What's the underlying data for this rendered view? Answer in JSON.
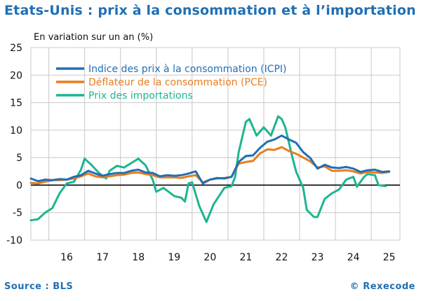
{
  "header": {
    "title": "Etats-Unis : prix à la consommation et à l’importation",
    "subtitle": "En variation sur un an (%)"
  },
  "footer": {
    "source": "Source : BLS",
    "copyright": "© Rexecode"
  },
  "colors": {
    "title": "#1f6fb5",
    "cpi": "#1f6fb5",
    "pce": "#e87d1e",
    "imports": "#1db591",
    "zero_line": "#000000",
    "grid": "#c8c8c8"
  },
  "chart_data": {
    "type": "line",
    "title": "Etats-Unis : prix à la consommation et à l’importation",
    "ylabel": "En variation sur un an (%)",
    "xlabel": "",
    "ylim": [
      -10,
      25
    ],
    "yticks": [
      25,
      20,
      15,
      10,
      5,
      0,
      -5,
      -10
    ],
    "xlim": [
      2015.5,
      2025.8
    ],
    "xticks": [
      {
        "label": "16",
        "x": 2016.5
      },
      {
        "label": "17",
        "x": 2017.5
      },
      {
        "label": "18",
        "x": 2018.5
      },
      {
        "label": "19",
        "x": 2019.5
      },
      {
        "label": "20",
        "x": 2020.5
      },
      {
        "label": "21",
        "x": 2021.5
      },
      {
        "label": "22",
        "x": 2022.5
      },
      {
        "label": "23",
        "x": 2023.5
      },
      {
        "label": "24",
        "x": 2024.5
      },
      {
        "label": "25",
        "x": 2025.5
      }
    ],
    "grid": true,
    "legend_position": "top-left",
    "series": [
      {
        "name": "Indice des prix à la consommation (ICPI)",
        "color_key": "cpi",
        "points": [
          [
            2015.5,
            1.2
          ],
          [
            2015.7,
            0.7
          ],
          [
            2015.9,
            1.0
          ],
          [
            2016.1,
            0.9
          ],
          [
            2016.3,
            1.1
          ],
          [
            2016.5,
            1.0
          ],
          [
            2016.7,
            1.5
          ],
          [
            2016.9,
            1.8
          ],
          [
            2017.1,
            2.6
          ],
          [
            2017.3,
            2.1
          ],
          [
            2017.5,
            1.7
          ],
          [
            2017.7,
            2.0
          ],
          [
            2017.9,
            2.2
          ],
          [
            2018.1,
            2.2
          ],
          [
            2018.3,
            2.6
          ],
          [
            2018.5,
            2.8
          ],
          [
            2018.7,
            2.3
          ],
          [
            2018.9,
            2.2
          ],
          [
            2019.1,
            1.6
          ],
          [
            2019.3,
            1.8
          ],
          [
            2019.5,
            1.7
          ],
          [
            2019.7,
            1.8
          ],
          [
            2019.9,
            2.1
          ],
          [
            2020.1,
            2.5
          ],
          [
            2020.3,
            0.3
          ],
          [
            2020.5,
            1.0
          ],
          [
            2020.7,
            1.3
          ],
          [
            2020.9,
            1.2
          ],
          [
            2021.1,
            1.5
          ],
          [
            2021.3,
            4.2
          ],
          [
            2021.5,
            5.3
          ],
          [
            2021.7,
            5.4
          ],
          [
            2021.9,
            6.8
          ],
          [
            2022.1,
            7.9
          ],
          [
            2022.3,
            8.3
          ],
          [
            2022.5,
            9.0
          ],
          [
            2022.7,
            8.3
          ],
          [
            2022.9,
            7.7
          ],
          [
            2023.1,
            6.0
          ],
          [
            2023.3,
            4.9
          ],
          [
            2023.5,
            3.0
          ],
          [
            2023.7,
            3.7
          ],
          [
            2023.9,
            3.2
          ],
          [
            2024.1,
            3.1
          ],
          [
            2024.3,
            3.3
          ],
          [
            2024.5,
            3.0
          ],
          [
            2024.7,
            2.4
          ],
          [
            2024.9,
            2.7
          ],
          [
            2025.1,
            2.8
          ],
          [
            2025.3,
            2.4
          ],
          [
            2025.5,
            2.5
          ]
        ]
      },
      {
        "name": "Déflateur de la consommation (PCE)",
        "color_key": "pce",
        "points": [
          [
            2015.5,
            0.4
          ],
          [
            2015.7,
            0.3
          ],
          [
            2015.9,
            0.6
          ],
          [
            2016.1,
            0.9
          ],
          [
            2016.3,
            0.9
          ],
          [
            2016.5,
            1.0
          ],
          [
            2016.7,
            1.2
          ],
          [
            2016.9,
            1.6
          ],
          [
            2017.1,
            2.1
          ],
          [
            2017.3,
            1.6
          ],
          [
            2017.5,
            1.4
          ],
          [
            2017.7,
            1.6
          ],
          [
            2017.9,
            1.8
          ],
          [
            2018.1,
            1.9
          ],
          [
            2018.3,
            2.2
          ],
          [
            2018.5,
            2.3
          ],
          [
            2018.7,
            2.0
          ],
          [
            2018.9,
            1.8
          ],
          [
            2019.1,
            1.4
          ],
          [
            2019.3,
            1.4
          ],
          [
            2019.5,
            1.4
          ],
          [
            2019.7,
            1.3
          ],
          [
            2019.9,
            1.6
          ],
          [
            2020.1,
            1.8
          ],
          [
            2020.3,
            0.5
          ],
          [
            2020.5,
            1.0
          ],
          [
            2020.7,
            1.2
          ],
          [
            2020.9,
            1.3
          ],
          [
            2021.1,
            1.5
          ],
          [
            2021.3,
            3.9
          ],
          [
            2021.5,
            4.2
          ],
          [
            2021.7,
            4.4
          ],
          [
            2021.9,
            5.8
          ],
          [
            2022.1,
            6.5
          ],
          [
            2022.3,
            6.4
          ],
          [
            2022.5,
            6.9
          ],
          [
            2022.7,
            6.2
          ],
          [
            2022.9,
            5.7
          ],
          [
            2023.1,
            5.0
          ],
          [
            2023.3,
            4.3
          ],
          [
            2023.5,
            3.2
          ],
          [
            2023.7,
            3.4
          ],
          [
            2023.9,
            2.6
          ],
          [
            2024.1,
            2.6
          ],
          [
            2024.3,
            2.7
          ],
          [
            2024.5,
            2.5
          ],
          [
            2024.7,
            2.1
          ],
          [
            2024.9,
            2.4
          ],
          [
            2025.1,
            2.3
          ],
          [
            2025.3,
            2.2
          ],
          [
            2025.5,
            2.4
          ]
        ]
      },
      {
        "name": "Prix des importations",
        "color_key": "imports",
        "points": [
          [
            2015.5,
            -6.4
          ],
          [
            2015.7,
            -6.2
          ],
          [
            2015.9,
            -5.0
          ],
          [
            2016.1,
            -4.2
          ],
          [
            2016.3,
            -1.5
          ],
          [
            2016.5,
            0.3
          ],
          [
            2016.7,
            0.6
          ],
          [
            2016.9,
            2.8
          ],
          [
            2017.0,
            4.8
          ],
          [
            2017.2,
            3.6
          ],
          [
            2017.4,
            2.2
          ],
          [
            2017.6,
            1.2
          ],
          [
            2017.7,
            2.6
          ],
          [
            2017.9,
            3.5
          ],
          [
            2018.1,
            3.2
          ],
          [
            2018.3,
            4.0
          ],
          [
            2018.5,
            4.8
          ],
          [
            2018.7,
            3.6
          ],
          [
            2018.9,
            1.0
          ],
          [
            2019.0,
            -1.2
          ],
          [
            2019.2,
            -0.5
          ],
          [
            2019.3,
            -1.0
          ],
          [
            2019.5,
            -2.0
          ],
          [
            2019.7,
            -2.3
          ],
          [
            2019.8,
            -3.0
          ],
          [
            2019.9,
            0.3
          ],
          [
            2020.0,
            0.5
          ],
          [
            2020.2,
            -3.8
          ],
          [
            2020.4,
            -6.7
          ],
          [
            2020.6,
            -3.5
          ],
          [
            2020.8,
            -1.5
          ],
          [
            2020.9,
            -0.5
          ],
          [
            2021.1,
            -0.2
          ],
          [
            2021.2,
            1.5
          ],
          [
            2021.3,
            6.0
          ],
          [
            2021.5,
            11.5
          ],
          [
            2021.6,
            12.0
          ],
          [
            2021.8,
            9.0
          ],
          [
            2022.0,
            10.5
          ],
          [
            2022.2,
            9.0
          ],
          [
            2022.4,
            12.5
          ],
          [
            2022.5,
            12.0
          ],
          [
            2022.6,
            10.5
          ],
          [
            2022.8,
            5.0
          ],
          [
            2022.9,
            2.5
          ],
          [
            2023.1,
            -0.5
          ],
          [
            2023.2,
            -4.5
          ],
          [
            2023.4,
            -5.8
          ],
          [
            2023.5,
            -5.8
          ],
          [
            2023.7,
            -2.5
          ],
          [
            2023.9,
            -1.5
          ],
          [
            2024.1,
            -0.8
          ],
          [
            2024.3,
            1.0
          ],
          [
            2024.5,
            1.5
          ],
          [
            2024.6,
            -0.3
          ],
          [
            2024.8,
            1.5
          ],
          [
            2024.9,
            2.0
          ],
          [
            2025.1,
            1.8
          ],
          [
            2025.2,
            0.0
          ],
          [
            2025.4,
            -0.2
          ]
        ]
      }
    ]
  }
}
